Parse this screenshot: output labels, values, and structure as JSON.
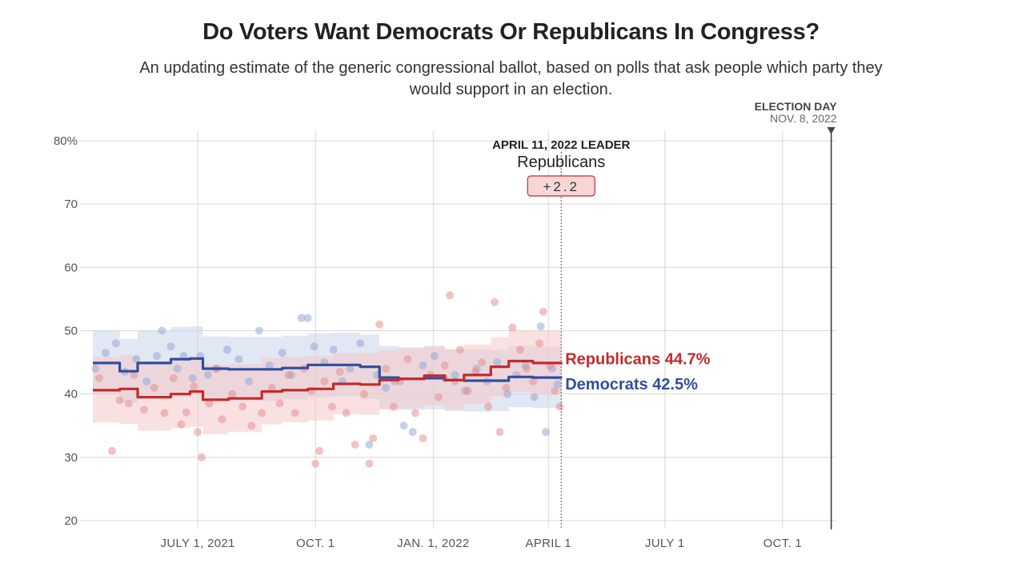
{
  "header": {
    "title": "Do Voters Want Democrats Or Republicans In Congress?",
    "subtitle": "An updating estimate of the generic congressional ballot, based on polls that ask people which party they would support in an election."
  },
  "election_day": {
    "label": "ELECTION DAY",
    "date": "NOV. 8, 2022"
  },
  "leader_box": {
    "date_label": "APRIL 11, 2022 LEADER",
    "party": "Republicans",
    "margin": "+2.2"
  },
  "colors": {
    "republicans": "#c32b2b",
    "democrats": "#2f4f9e",
    "rep_band": "#f5c9c9",
    "dem_band": "#c9d3ea",
    "rep_dot": "#e38a8a",
    "dem_dot": "#8ea4d2",
    "leader_fill": "#f7d6d6",
    "grid": "#d8d8d8"
  },
  "chart_data": {
    "type": "line",
    "title": "Do Voters Want Democrats Or Republicans In Congress?",
    "x_range": [
      "2021-04-05",
      "2022-11-12"
    ],
    "ylim": [
      20,
      80
    ],
    "y_ticks": [
      20,
      30,
      40,
      50,
      60,
      70,
      80
    ],
    "y_tick_labels": [
      "20",
      "30",
      "40",
      "50",
      "60",
      "70",
      "80%"
    ],
    "x_ticks": [
      {
        "date": "2021-07-01",
        "label": "JULY 1, 2021"
      },
      {
        "date": "2021-10-01",
        "label": "OCT. 1"
      },
      {
        "date": "2022-01-01",
        "label": "JAN. 1, 2022"
      },
      {
        "date": "2022-04-01",
        "label": "APRIL 1"
      },
      {
        "date": "2022-07-01",
        "label": "JULY 1"
      },
      {
        "date": "2022-10-01",
        "label": "OCT. 1"
      }
    ],
    "grid": true,
    "current_date": "2022-04-11",
    "election_date": "2022-11-08",
    "series": [
      {
        "name": "Republicans",
        "end_label": "Republicans 44.7%",
        "x": [
          "2021-04-10",
          "2021-05-01",
          "2021-05-15",
          "2021-06-10",
          "2021-06-25",
          "2021-07-05",
          "2021-07-25",
          "2021-08-20",
          "2021-09-05",
          "2021-09-25",
          "2021-10-15",
          "2021-11-05",
          "2021-11-20",
          "2021-12-05",
          "2021-12-25",
          "2022-01-10",
          "2022-01-25",
          "2022-02-15",
          "2022-03-01",
          "2022-03-20",
          "2022-04-11"
        ],
        "values": [
          40.6,
          40.8,
          39.5,
          40.0,
          40.4,
          39.1,
          39.3,
          40.4,
          40.6,
          40.8,
          41.6,
          41.5,
          42.2,
          42.4,
          42.9,
          42.2,
          43.0,
          44.3,
          45.2,
          44.9,
          44.7
        ],
        "band_low": [
          35.5,
          35.3,
          34.2,
          34.6,
          34.8,
          33.6,
          34.0,
          35.2,
          35.5,
          35.8,
          36.8,
          36.7,
          37.5,
          37.8,
          38.2,
          37.6,
          38.4,
          39.6,
          40.3,
          39.9,
          39.4
        ],
        "band_high": [
          45.8,
          46.1,
          44.8,
          45.3,
          45.8,
          44.6,
          44.7,
          45.7,
          45.9,
          46.0,
          46.5,
          46.5,
          47.0,
          47.2,
          47.6,
          47.0,
          47.8,
          49.0,
          50.1,
          50.0,
          50.1
        ]
      },
      {
        "name": "Democrats",
        "end_label": "Democrats 42.5%",
        "x": [
          "2021-04-10",
          "2021-05-01",
          "2021-05-15",
          "2021-06-10",
          "2021-06-25",
          "2021-07-05",
          "2021-07-25",
          "2021-08-20",
          "2021-09-05",
          "2021-09-25",
          "2021-10-15",
          "2021-11-05",
          "2021-11-20",
          "2021-12-05",
          "2021-12-25",
          "2022-01-10",
          "2022-01-25",
          "2022-02-15",
          "2022-03-01",
          "2022-03-20",
          "2022-04-11"
        ],
        "values": [
          44.9,
          43.6,
          44.9,
          45.5,
          45.6,
          44.0,
          43.9,
          43.9,
          44.1,
          44.6,
          44.6,
          44.3,
          42.6,
          42.4,
          42.5,
          42.2,
          42.1,
          42.1,
          42.7,
          42.6,
          42.5
        ],
        "band_low": [
          39.9,
          38.6,
          39.8,
          40.3,
          40.4,
          39.0,
          38.9,
          38.9,
          39.1,
          39.5,
          39.6,
          39.2,
          37.7,
          37.5,
          37.6,
          37.3,
          37.2,
          37.3,
          37.9,
          37.8,
          37.7
        ],
        "band_high": [
          50.0,
          48.7,
          50.0,
          50.6,
          50.7,
          49.1,
          49.0,
          49.0,
          49.2,
          49.6,
          49.7,
          49.4,
          47.6,
          47.4,
          47.5,
          47.1,
          47.0,
          47.0,
          47.6,
          47.5,
          47.4
        ]
      }
    ],
    "polls": {
      "republicans": [
        [
          "2021-04-15",
          42.5
        ],
        [
          "2021-04-25",
          31.0
        ],
        [
          "2021-05-01",
          39.0
        ],
        [
          "2021-05-08",
          38.5
        ],
        [
          "2021-05-12",
          43.0
        ],
        [
          "2021-05-20",
          37.5
        ],
        [
          "2021-05-28",
          41.0
        ],
        [
          "2021-06-05",
          37.0
        ],
        [
          "2021-06-12",
          42.5
        ],
        [
          "2021-06-18",
          35.2
        ],
        [
          "2021-06-22",
          37.1
        ],
        [
          "2021-06-28",
          41.2
        ],
        [
          "2021-07-01",
          34.0
        ],
        [
          "2021-07-04",
          30.0
        ],
        [
          "2021-07-10",
          38.5
        ],
        [
          "2021-07-15",
          44.0
        ],
        [
          "2021-07-20",
          36.0
        ],
        [
          "2021-07-28",
          40.0
        ],
        [
          "2021-08-05",
          38.0
        ],
        [
          "2021-08-12",
          35.0
        ],
        [
          "2021-08-20",
          37.0
        ],
        [
          "2021-08-28",
          41.0
        ],
        [
          "2021-09-03",
          38.5
        ],
        [
          "2021-09-10",
          43.0
        ],
        [
          "2021-09-15",
          37.0
        ],
        [
          "2021-09-22",
          44.0
        ],
        [
          "2021-09-28",
          40.5
        ],
        [
          "2021-10-01",
          29.0
        ],
        [
          "2021-10-04",
          31.0
        ],
        [
          "2021-10-08",
          42.0
        ],
        [
          "2021-10-14",
          38.0
        ],
        [
          "2021-10-20",
          43.5
        ],
        [
          "2021-10-25",
          37.0
        ],
        [
          "2021-11-01",
          32.0
        ],
        [
          "2021-11-08",
          40.0
        ],
        [
          "2021-11-12",
          29.0
        ],
        [
          "2021-11-15",
          33.0
        ],
        [
          "2021-11-20",
          51.0
        ],
        [
          "2021-11-25",
          44.0
        ],
        [
          "2021-12-01",
          38.0
        ],
        [
          "2021-12-06",
          42.0
        ],
        [
          "2021-12-12",
          45.5
        ],
        [
          "2021-12-18",
          37.0
        ],
        [
          "2021-12-24",
          33.0
        ],
        [
          "2021-12-30",
          43.0
        ],
        [
          "2022-01-05",
          39.5
        ],
        [
          "2022-01-10",
          44.5
        ],
        [
          "2022-01-14",
          55.6
        ],
        [
          "2022-01-18",
          42.0
        ],
        [
          "2022-01-22",
          47.0
        ],
        [
          "2022-01-28",
          40.5
        ],
        [
          "2022-02-03",
          43.5
        ],
        [
          "2022-02-08",
          45.0
        ],
        [
          "2022-02-13",
          38.0
        ],
        [
          "2022-02-18",
          54.5
        ],
        [
          "2022-02-22",
          34.0
        ],
        [
          "2022-02-27",
          41.0
        ],
        [
          "2022-03-04",
          50.5
        ],
        [
          "2022-03-10",
          47.0
        ],
        [
          "2022-03-15",
          44.0
        ],
        [
          "2022-03-20",
          42.0
        ],
        [
          "2022-03-25",
          48.0
        ],
        [
          "2022-03-28",
          53.0
        ],
        [
          "2022-04-02",
          44.5
        ],
        [
          "2022-04-06",
          40.5
        ],
        [
          "2022-04-10",
          38.0
        ]
      ],
      "democrats": [
        [
          "2021-04-12",
          44.0
        ],
        [
          "2021-04-20",
          46.5
        ],
        [
          "2021-04-28",
          48.0
        ],
        [
          "2021-05-05",
          43.5
        ],
        [
          "2021-05-14",
          45.5
        ],
        [
          "2021-05-22",
          42.0
        ],
        [
          "2021-05-30",
          46.0
        ],
        [
          "2021-06-03",
          50.0
        ],
        [
          "2021-06-10",
          47.5
        ],
        [
          "2021-06-15",
          44.0
        ],
        [
          "2021-06-20",
          46.0
        ],
        [
          "2021-06-27",
          42.5
        ],
        [
          "2021-07-03",
          46.0
        ],
        [
          "2021-07-09",
          43.0
        ],
        [
          "2021-07-16",
          44.0
        ],
        [
          "2021-07-24",
          47.0
        ],
        [
          "2021-08-02",
          45.5
        ],
        [
          "2021-08-10",
          42.0
        ],
        [
          "2021-08-18",
          50.0
        ],
        [
          "2021-08-26",
          44.5
        ],
        [
          "2021-09-05",
          46.5
        ],
        [
          "2021-09-12",
          43.0
        ],
        [
          "2021-09-20",
          52.0
        ],
        [
          "2021-09-25",
          52.0
        ],
        [
          "2021-09-30",
          47.5
        ],
        [
          "2021-10-08",
          45.0
        ],
        [
          "2021-10-15",
          47.0
        ],
        [
          "2021-10-22",
          42.0
        ],
        [
          "2021-10-28",
          44.0
        ],
        [
          "2021-11-05",
          48.0
        ],
        [
          "2021-11-12",
          32.0
        ],
        [
          "2021-11-18",
          43.0
        ],
        [
          "2021-11-25",
          41.0
        ],
        [
          "2021-12-02",
          42.0
        ],
        [
          "2021-12-09",
          35.0
        ],
        [
          "2021-12-16",
          34.0
        ],
        [
          "2021-12-24",
          44.5
        ],
        [
          "2022-01-02",
          46.0
        ],
        [
          "2022-01-10",
          42.5
        ],
        [
          "2022-01-18",
          43.0
        ],
        [
          "2022-01-26",
          40.5
        ],
        [
          "2022-02-04",
          44.0
        ],
        [
          "2022-02-12",
          42.0
        ],
        [
          "2022-02-20",
          45.0
        ],
        [
          "2022-02-28",
          40.0
        ],
        [
          "2022-03-07",
          43.0
        ],
        [
          "2022-03-14",
          44.5
        ],
        [
          "2022-03-21",
          39.5
        ],
        [
          "2022-03-26",
          50.7
        ],
        [
          "2022-03-30",
          34.0
        ],
        [
          "2022-04-04",
          44.0
        ],
        [
          "2022-04-08",
          41.5
        ]
      ]
    }
  }
}
